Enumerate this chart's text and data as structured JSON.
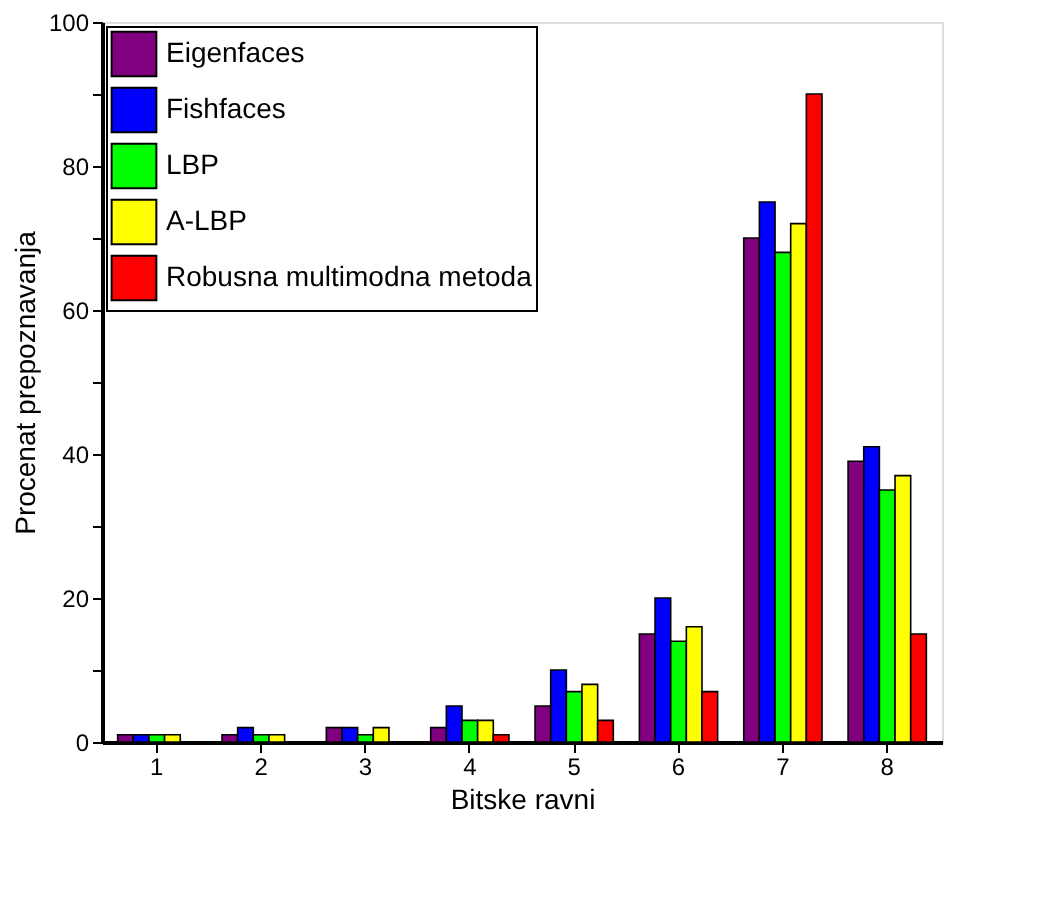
{
  "chart_data": {
    "type": "bar",
    "xlabel": "Bitske ravni",
    "ylabel": "Procenat prepoznavanja",
    "categories": [
      "1",
      "2",
      "3",
      "4",
      "5",
      "6",
      "7",
      "8"
    ],
    "series": [
      {
        "name": "Eigenfaces",
        "color": "#800080",
        "values": [
          1,
          1,
          2,
          2,
          5,
          15,
          70,
          39
        ]
      },
      {
        "name": "Fishfaces",
        "color": "#0000ff",
        "values": [
          1,
          2,
          2,
          5,
          10,
          20,
          75,
          41
        ]
      },
      {
        "name": "LBP",
        "color": "#00ff00",
        "values": [
          1,
          1,
          1,
          3,
          7,
          14,
          68,
          35
        ]
      },
      {
        "name": "A-LBP",
        "color": "#ffff00",
        "values": [
          1,
          1,
          2,
          3,
          8,
          16,
          72,
          37
        ]
      },
      {
        "name": "Robusna multimodna metoda",
        "color": "#ff0000",
        "values": [
          null,
          null,
          null,
          1,
          3,
          7,
          90,
          15
        ]
      }
    ],
    "ylim": [
      0,
      100
    ],
    "yticks": [
      0,
      {
        "value": 10,
        "label": null
      },
      20,
      {
        "value": 30,
        "label": null
      },
      40,
      {
        "value": 50,
        "label": null
      },
      60,
      {
        "value": 70,
        "label": null
      },
      80,
      {
        "value": 90,
        "label": null
      },
      100
    ],
    "grid": false,
    "legend": "top left"
  }
}
